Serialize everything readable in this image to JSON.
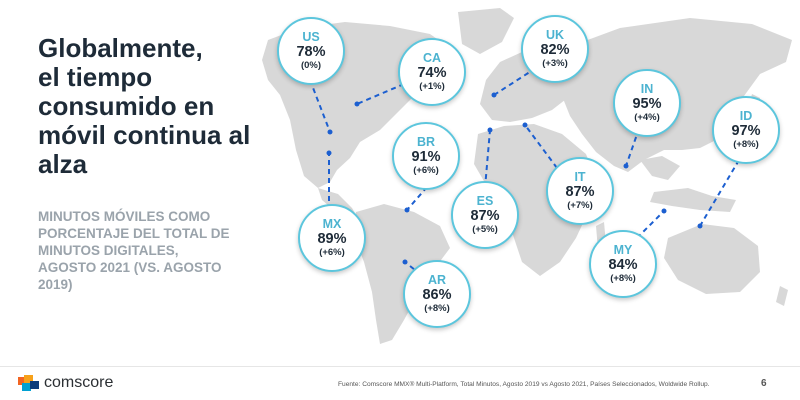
{
  "slide": {
    "title_lines": [
      "Globalmente,",
      "el tiempo",
      "consumido en",
      "móvil continua al",
      "alza"
    ],
    "subtitle_lines": [
      "MINUTOS MÓVILES COMO",
      "PORCENTAJE DEL TOTAL DE",
      "MINUTOS DIGITALES,",
      "AGOSTO 2021 (VS. AGOSTO",
      "2019)"
    ],
    "footer": {
      "brand": "comscore",
      "source": "Fuente: Comscore MMX® Multi-Platform, Total Minutos, Agosto 2019 vs Agosto 2021, Países Seleccionados, Woldwide Rollup.",
      "page_number": "6"
    }
  },
  "map": {
    "land_color": "#d8d8d8",
    "accent_color": "#5cc6dd",
    "connector_color": "#1c5fd0",
    "countries": [
      {
        "code": "US",
        "value": "78%",
        "change": "(0%)"
      },
      {
        "code": "CA",
        "value": "74%",
        "change": "(+1%)"
      },
      {
        "code": "BR",
        "value": "91%",
        "change": "(+6%)"
      },
      {
        "code": "MX",
        "value": "89%",
        "change": "(+6%)"
      },
      {
        "code": "AR",
        "value": "86%",
        "change": "(+8%)"
      },
      {
        "code": "UK",
        "value": "82%",
        "change": "(+3%)"
      },
      {
        "code": "ES",
        "value": "87%",
        "change": "(+5%)"
      },
      {
        "code": "IT",
        "value": "87%",
        "change": "(+7%)"
      },
      {
        "code": "IN",
        "value": "95%",
        "change": "(+4%)"
      },
      {
        "code": "ID",
        "value": "97%",
        "change": "(+8%)"
      },
      {
        "code": "MY",
        "value": "84%",
        "change": "(+8%)"
      }
    ]
  }
}
